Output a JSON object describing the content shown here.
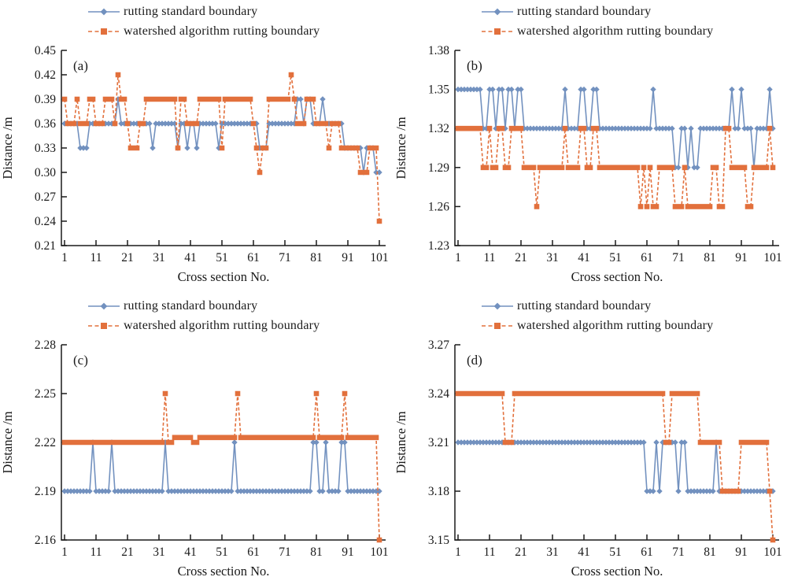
{
  "figure": {
    "kind": "2x2 line-chart figure comparing rutting boundaries",
    "background": "#ffffff"
  },
  "legend": {
    "standard": "rutting standard boundary",
    "watershed": "watershed algorithm rutting boundary",
    "position": "above-plot-left-aligned"
  },
  "colors": {
    "standard": "#7291BF",
    "watershed": "#E2703C",
    "axis": "#1a1a1a",
    "text": "#1a1a1a"
  },
  "axes_text": {
    "xlabel": "Cross section No.",
    "ylabel": "Distance /m"
  },
  "chart_data": [
    {
      "type": "line",
      "label": "(a)",
      "xlabel": "Cross section No.",
      "ylabel": "Distance /m",
      "x_start": 1,
      "xticks": [
        1,
        11,
        21,
        31,
        41,
        51,
        61,
        71,
        81,
        91,
        101
      ],
      "xlim": [
        0,
        103
      ],
      "ylim": [
        0.21,
        0.45
      ],
      "yticks": [
        0.21,
        0.24,
        0.27,
        0.3,
        0.33,
        0.36,
        0.39,
        0.42,
        0.45
      ],
      "grid": false,
      "series": [
        {
          "name": "rutting standard boundary",
          "marker": "diamond",
          "line": "solid",
          "values": [
            0.36,
            0.36,
            0.36,
            0.36,
            0.36,
            0.33,
            0.33,
            0.33,
            0.36,
            0.36,
            0.36,
            0.36,
            0.36,
            0.36,
            0.36,
            0.36,
            0.36,
            0.39,
            0.36,
            0.36,
            0.36,
            0.36,
            0.36,
            0.36,
            0.36,
            0.36,
            0.36,
            0.36,
            0.33,
            0.36,
            0.36,
            0.36,
            0.36,
            0.36,
            0.36,
            0.36,
            0.33,
            0.36,
            0.36,
            0.33,
            0.36,
            0.36,
            0.33,
            0.36,
            0.36,
            0.36,
            0.36,
            0.36,
            0.36,
            0.33,
            0.36,
            0.36,
            0.36,
            0.36,
            0.36,
            0.36,
            0.36,
            0.36,
            0.36,
            0.36,
            0.36,
            0.36,
            0.33,
            0.33,
            0.33,
            0.36,
            0.36,
            0.36,
            0.36,
            0.36,
            0.36,
            0.36,
            0.36,
            0.36,
            0.39,
            0.39,
            0.36,
            0.39,
            0.39,
            0.36,
            0.36,
            0.36,
            0.39,
            0.36,
            0.36,
            0.36,
            0.36,
            0.36,
            0.36,
            0.33,
            0.33,
            0.33,
            0.33,
            0.33,
            0.33,
            0.3,
            0.33,
            0.33,
            0.33,
            0.3,
            0.3
          ]
        },
        {
          "name": "watershed algorithm rutting boundary",
          "marker": "square",
          "line": "dashed",
          "values": [
            0.39,
            0.36,
            0.36,
            0.36,
            0.39,
            0.36,
            0.36,
            0.36,
            0.39,
            0.39,
            0.36,
            0.36,
            0.36,
            0.39,
            0.39,
            0.39,
            0.36,
            0.42,
            0.39,
            0.39,
            0.36,
            0.33,
            0.33,
            0.33,
            0.36,
            0.36,
            0.39,
            0.39,
            0.39,
            0.39,
            0.39,
            0.39,
            0.39,
            0.39,
            0.39,
            0.39,
            0.33,
            0.39,
            0.39,
            0.36,
            0.36,
            0.36,
            0.36,
            0.39,
            0.39,
            0.39,
            0.39,
            0.39,
            0.39,
            0.39,
            0.33,
            0.39,
            0.39,
            0.39,
            0.39,
            0.39,
            0.39,
            0.39,
            0.39,
            0.39,
            0.36,
            0.33,
            0.3,
            0.33,
            0.33,
            0.39,
            0.39,
            0.39,
            0.39,
            0.39,
            0.39,
            0.39,
            0.42,
            0.39,
            0.36,
            0.36,
            0.36,
            0.39,
            0.39,
            0.39,
            0.36,
            0.36,
            0.36,
            0.36,
            0.33,
            0.36,
            0.36,
            0.36,
            0.33,
            0.33,
            0.33,
            0.33,
            0.33,
            0.33,
            0.3,
            0.3,
            0.3,
            0.33,
            0.33,
            0.33,
            0.24
          ]
        }
      ]
    },
    {
      "type": "line",
      "label": "(b)",
      "xlabel": "Cross section No.",
      "ylabel": "Distance /m",
      "x_start": 1,
      "xticks": [
        1,
        11,
        21,
        31,
        41,
        51,
        61,
        71,
        81,
        91,
        101
      ],
      "xlim": [
        0,
        103
      ],
      "ylim": [
        1.23,
        1.38
      ],
      "yticks": [
        1.23,
        1.26,
        1.29,
        1.32,
        1.35,
        1.38
      ],
      "grid": false,
      "series": [
        {
          "name": "rutting standard boundary",
          "marker": "diamond",
          "line": "solid",
          "values": [
            1.35,
            1.35,
            1.35,
            1.35,
            1.35,
            1.35,
            1.35,
            1.35,
            1.32,
            1.32,
            1.35,
            1.35,
            1.32,
            1.35,
            1.35,
            1.32,
            1.35,
            1.35,
            1.32,
            1.35,
            1.35,
            1.32,
            1.32,
            1.32,
            1.32,
            1.32,
            1.32,
            1.32,
            1.32,
            1.32,
            1.32,
            1.32,
            1.32,
            1.32,
            1.35,
            1.32,
            1.32,
            1.32,
            1.32,
            1.35,
            1.35,
            1.32,
            1.32,
            1.35,
            1.35,
            1.32,
            1.32,
            1.32,
            1.32,
            1.32,
            1.32,
            1.32,
            1.32,
            1.32,
            1.32,
            1.32,
            1.32,
            1.32,
            1.32,
            1.32,
            1.32,
            1.32,
            1.35,
            1.32,
            1.32,
            1.32,
            1.32,
            1.32,
            1.32,
            1.29,
            1.29,
            1.32,
            1.32,
            1.29,
            1.32,
            1.29,
            1.29,
            1.32,
            1.32,
            1.32,
            1.32,
            1.32,
            1.32,
            1.32,
            1.32,
            1.32,
            1.32,
            1.35,
            1.32,
            1.32,
            1.35,
            1.32,
            1.32,
            1.32,
            1.29,
            1.32,
            1.32,
            1.32,
            1.32,
            1.35,
            1.32
          ]
        },
        {
          "name": "watershed algorithm rutting boundary",
          "marker": "square",
          "line": "dashed",
          "values": [
            1.32,
            1.32,
            1.32,
            1.32,
            1.32,
            1.32,
            1.32,
            1.32,
            1.29,
            1.29,
            1.32,
            1.29,
            1.29,
            1.32,
            1.32,
            1.29,
            1.29,
            1.32,
            1.32,
            1.32,
            1.32,
            1.29,
            1.29,
            1.29,
            1.29,
            1.26,
            1.29,
            1.29,
            1.29,
            1.29,
            1.29,
            1.29,
            1.29,
            1.29,
            1.32,
            1.29,
            1.29,
            1.29,
            1.29,
            1.32,
            1.32,
            1.29,
            1.29,
            1.32,
            1.32,
            1.29,
            1.29,
            1.29,
            1.29,
            1.29,
            1.29,
            1.29,
            1.29,
            1.29,
            1.29,
            1.29,
            1.29,
            1.29,
            1.26,
            1.29,
            1.26,
            1.29,
            1.26,
            1.26,
            1.29,
            1.29,
            1.29,
            1.29,
            1.29,
            1.26,
            1.26,
            1.26,
            1.29,
            1.26,
            1.26,
            1.26,
            1.26,
            1.26,
            1.26,
            1.26,
            1.26,
            1.29,
            1.29,
            1.26,
            1.26,
            1.32,
            1.32,
            1.29,
            1.29,
            1.29,
            1.29,
            1.29,
            1.26,
            1.26,
            1.29,
            1.29,
            1.29,
            1.29,
            1.29,
            1.32,
            1.29
          ]
        }
      ]
    },
    {
      "type": "line",
      "label": "(c)",
      "xlabel": "Cross section No.",
      "ylabel": "Distance /m",
      "x_start": 1,
      "xticks": [
        1,
        11,
        21,
        31,
        41,
        51,
        61,
        71,
        81,
        91,
        101
      ],
      "xlim": [
        0,
        103
      ],
      "ylim": [
        2.16,
        2.28
      ],
      "yticks": [
        2.16,
        2.19,
        2.22,
        2.25,
        2.28
      ],
      "grid": false,
      "series": [
        {
          "name": "rutting standard boundary",
          "marker": "diamond",
          "line": "solid",
          "values": [
            2.19,
            2.19,
            2.19,
            2.19,
            2.19,
            2.19,
            2.19,
            2.19,
            2.19,
            2.22,
            2.19,
            2.19,
            2.19,
            2.19,
            2.19,
            2.22,
            2.19,
            2.19,
            2.19,
            2.19,
            2.19,
            2.19,
            2.19,
            2.19,
            2.19,
            2.19,
            2.19,
            2.19,
            2.19,
            2.19,
            2.19,
            2.19,
            2.22,
            2.19,
            2.19,
            2.19,
            2.19,
            2.19,
            2.19,
            2.19,
            2.19,
            2.19,
            2.19,
            2.19,
            2.19,
            2.19,
            2.19,
            2.19,
            2.19,
            2.19,
            2.19,
            2.19,
            2.19,
            2.19,
            2.22,
            2.19,
            2.19,
            2.19,
            2.19,
            2.19,
            2.19,
            2.19,
            2.19,
            2.19,
            2.19,
            2.19,
            2.19,
            2.19,
            2.19,
            2.19,
            2.19,
            2.19,
            2.19,
            2.19,
            2.19,
            2.19,
            2.19,
            2.19,
            2.19,
            2.22,
            2.22,
            2.19,
            2.19,
            2.22,
            2.19,
            2.19,
            2.19,
            2.19,
            2.22,
            2.22,
            2.19,
            2.19,
            2.19,
            2.19,
            2.19,
            2.19,
            2.19,
            2.19,
            2.19,
            2.19,
            2.19
          ]
        },
        {
          "name": "watershed algorithm rutting boundary",
          "marker": "square",
          "line": "dashed",
          "values": [
            2.22,
            2.22,
            2.22,
            2.22,
            2.22,
            2.22,
            2.22,
            2.22,
            2.22,
            2.22,
            2.22,
            2.22,
            2.22,
            2.22,
            2.22,
            2.22,
            2.22,
            2.22,
            2.22,
            2.22,
            2.22,
            2.22,
            2.22,
            2.22,
            2.22,
            2.22,
            2.22,
            2.22,
            2.22,
            2.22,
            2.22,
            2.22,
            2.25,
            2.22,
            2.22,
            2.223,
            2.223,
            2.223,
            2.223,
            2.223,
            2.223,
            2.22,
            2.22,
            2.223,
            2.223,
            2.223,
            2.223,
            2.223,
            2.223,
            2.223,
            2.223,
            2.223,
            2.223,
            2.223,
            2.223,
            2.25,
            2.223,
            2.223,
            2.223,
            2.223,
            2.223,
            2.223,
            2.223,
            2.223,
            2.223,
            2.223,
            2.223,
            2.223,
            2.223,
            2.223,
            2.223,
            2.223,
            2.223,
            2.223,
            2.223,
            2.223,
            2.223,
            2.223,
            2.223,
            2.223,
            2.25,
            2.223,
            2.223,
            2.223,
            2.223,
            2.223,
            2.223,
            2.223,
            2.223,
            2.25,
            2.223,
            2.223,
            2.223,
            2.223,
            2.223,
            2.223,
            2.223,
            2.223,
            2.223,
            2.223,
            2.16
          ]
        }
      ]
    },
    {
      "type": "line",
      "label": "(d)",
      "xlabel": "Cross section No.",
      "ylabel": "Distance /m",
      "x_start": 1,
      "xticks": [
        1,
        11,
        21,
        31,
        41,
        51,
        61,
        71,
        81,
        91,
        101
      ],
      "xlim": [
        0,
        103
      ],
      "ylim": [
        3.15,
        3.27
      ],
      "yticks": [
        3.15,
        3.18,
        3.21,
        3.24,
        3.27
      ],
      "grid": false,
      "series": [
        {
          "name": "rutting standard boundary",
          "marker": "diamond",
          "line": "solid",
          "values": [
            3.21,
            3.21,
            3.21,
            3.21,
            3.21,
            3.21,
            3.21,
            3.21,
            3.21,
            3.21,
            3.21,
            3.21,
            3.21,
            3.21,
            3.21,
            3.21,
            3.21,
            3.21,
            3.21,
            3.21,
            3.21,
            3.21,
            3.21,
            3.21,
            3.21,
            3.21,
            3.21,
            3.21,
            3.21,
            3.21,
            3.21,
            3.21,
            3.21,
            3.21,
            3.21,
            3.21,
            3.21,
            3.21,
            3.21,
            3.21,
            3.21,
            3.21,
            3.21,
            3.21,
            3.21,
            3.21,
            3.21,
            3.21,
            3.21,
            3.21,
            3.21,
            3.21,
            3.21,
            3.21,
            3.21,
            3.21,
            3.21,
            3.21,
            3.21,
            3.21,
            3.18,
            3.18,
            3.18,
            3.21,
            3.18,
            3.21,
            3.21,
            3.21,
            3.21,
            3.21,
            3.18,
            3.21,
            3.21,
            3.18,
            3.18,
            3.18,
            3.18,
            3.18,
            3.18,
            3.18,
            3.18,
            3.18,
            3.21,
            3.18,
            3.18,
            3.18,
            3.18,
            3.18,
            3.18,
            3.18,
            3.18,
            3.18,
            3.18,
            3.18,
            3.18,
            3.18,
            3.18,
            3.18,
            3.18,
            3.18,
            3.18
          ]
        },
        {
          "name": "watershed algorithm rutting boundary",
          "marker": "square",
          "line": "dashed",
          "values": [
            3.24,
            3.24,
            3.24,
            3.24,
            3.24,
            3.24,
            3.24,
            3.24,
            3.24,
            3.24,
            3.24,
            3.24,
            3.24,
            3.24,
            3.24,
            3.21,
            3.21,
            3.21,
            3.24,
            3.24,
            3.24,
            3.24,
            3.24,
            3.24,
            3.24,
            3.24,
            3.24,
            3.24,
            3.24,
            3.24,
            3.24,
            3.24,
            3.24,
            3.24,
            3.24,
            3.24,
            3.24,
            3.24,
            3.24,
            3.24,
            3.24,
            3.24,
            3.24,
            3.24,
            3.24,
            3.24,
            3.24,
            3.24,
            3.24,
            3.24,
            3.24,
            3.24,
            3.24,
            3.24,
            3.24,
            3.24,
            3.24,
            3.24,
            3.24,
            3.24,
            3.24,
            3.24,
            3.24,
            3.24,
            3.24,
            3.24,
            3.21,
            3.21,
            3.24,
            3.24,
            3.24,
            3.24,
            3.24,
            3.24,
            3.24,
            3.24,
            3.24,
            3.21,
            3.21,
            3.21,
            3.21,
            3.21,
            3.21,
            3.21,
            3.18,
            3.18,
            3.18,
            3.18,
            3.18,
            3.18,
            3.21,
            3.21,
            3.21,
            3.21,
            3.21,
            3.21,
            3.21,
            3.21,
            3.21,
            3.18,
            3.15
          ]
        }
      ]
    }
  ]
}
